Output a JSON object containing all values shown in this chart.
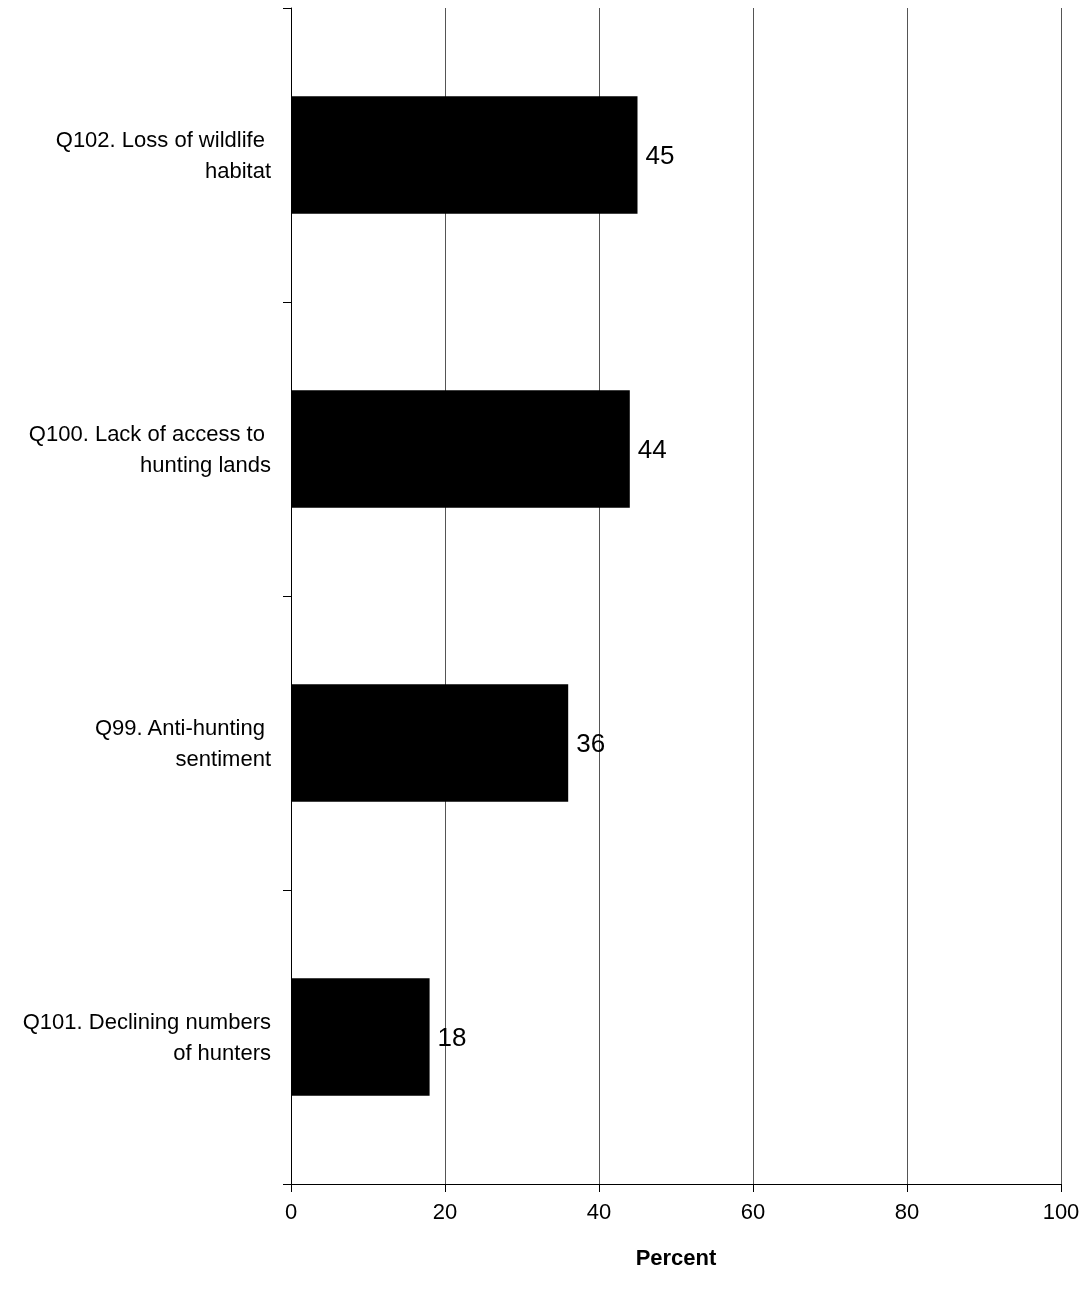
{
  "chart_data": {
    "type": "bar",
    "orientation": "horizontal",
    "categories": [
      "Q102. Loss of wildlife habitat",
      "Q100. Lack of access to hunting lands",
      "Q99. Anti-hunting sentiment",
      "Q101. Declining numbers of hunters"
    ],
    "values": [
      45,
      44,
      36,
      18
    ],
    "color": "#000000",
    "xlim": [
      0,
      100
    ],
    "xticks": [
      0,
      20,
      40,
      60,
      80,
      100
    ],
    "xlabel": "Percent",
    "grid": "x",
    "data_labels": true
  }
}
